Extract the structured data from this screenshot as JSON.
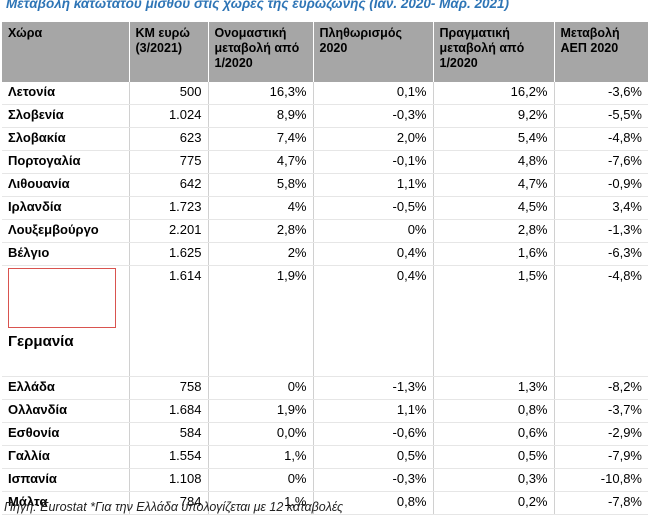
{
  "title": "Μεταβολή κατώτατου μισθού στις χώρες της ευρωζώνης (Ιαν. 2020- Μαρ. 2021)",
  "headers": [
    "Χώρα",
    "ΚΜ ευρώ (3/2021)",
    "Ονομαστική μεταβολή από  1/2020",
    "Πληθωρισμός 2020",
    "Πραγματική μεταβολή από 1/2020",
    "Μεταβολή ΑΕΠ 2020"
  ],
  "rows": [
    {
      "country": "Λετονία",
      "km": "500",
      "nominal": "16,3%",
      "inflation": "0,1%",
      "real": "16,2%",
      "gdp": "-3,6%"
    },
    {
      "country": "Σλοβενία",
      "km": "1.024",
      "nominal": "8,9%",
      "inflation": "-0,3%",
      "real": "9,2%",
      "gdp": "-5,5%"
    },
    {
      "country": "Σλοβακία",
      "km": "623",
      "nominal": "7,4%",
      "inflation": "2,0%",
      "real": "5,4%",
      "gdp": "-4,8%"
    },
    {
      "country": "Πορτογαλία",
      "km": "775",
      "nominal": "4,7%",
      "inflation": "-0,1%",
      "real": "4,8%",
      "gdp": "-7,6%"
    },
    {
      "country": "Λιθουανία",
      "km": "642",
      "nominal": "5,8%",
      "inflation": "1,1%",
      "real": "4,7%",
      "gdp": "-0,9%"
    },
    {
      "country": "Ιρλανδία",
      "km": "1.723",
      "nominal": "4%",
      "inflation": "-0,5%",
      "real": "4,5%",
      "gdp": "3,4%"
    },
    {
      "country": "Λουξεμβούργο",
      "km": "2.201",
      "nominal": "2,8%",
      "inflation": "0%",
      "real": "2,8%",
      "gdp": "-1,3%"
    },
    {
      "country": "Βέλγιο",
      "km": "1.625",
      "nominal": "2%",
      "inflation": "0,4%",
      "real": "1,6%",
      "gdp": "-6,3%"
    },
    {
      "country": "Γερμανία",
      "km": "1.614",
      "nominal": "1,9%",
      "inflation": "0,4%",
      "real": "1,5%",
      "gdp": "-4,8%"
    },
    {
      "country": "Ελλάδα",
      "km": "758",
      "nominal": "0%",
      "inflation": "-1,3%",
      "real": "1,3%",
      "gdp": "-8,2%"
    },
    {
      "country": "Ολλανδία",
      "km": "1.684",
      "nominal": "1,9%",
      "inflation": "1,1%",
      "real": "0,8%",
      "gdp": "-3,7%"
    },
    {
      "country": "Εσθονία",
      "km": "584",
      "nominal": "0,0%",
      "inflation": "-0,6%",
      "real": "0,6%",
      "gdp": "-2,9%"
    },
    {
      "country": "Γαλλία",
      "km": "1.554",
      "nominal": "1,%",
      "inflation": "0,5%",
      "real": "0,5%",
      "gdp": "-7,9%"
    },
    {
      "country": "Ισπανία",
      "km": "1.108",
      "nominal": "0%",
      "inflation": "-0,3%",
      "real": "0,3%",
      "gdp": "-10,8%"
    },
    {
      "country": "Μάλτα",
      "km": "784",
      "nominal": "1,%",
      "inflation": "0,8%",
      "real": "0,2%",
      "gdp": "-7,8%"
    }
  ],
  "source": "Πηγή: Eurostat *Για την Ελλάδα υπολογίζεται με 12 καταβολές"
}
